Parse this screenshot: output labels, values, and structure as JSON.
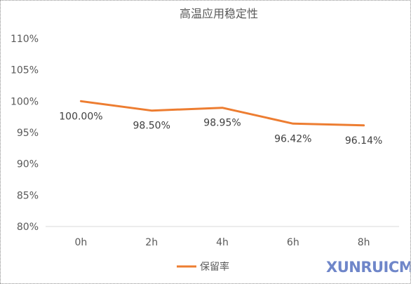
{
  "chart_data": {
    "type": "line",
    "title": "高温应用稳定性",
    "categories": [
      "0h",
      "2h",
      "4h",
      "6h",
      "8h"
    ],
    "series": [
      {
        "name": "保留率",
        "values": [
          100.0,
          98.5,
          98.95,
          96.42,
          96.14
        ],
        "labels": [
          "100.00%",
          "98.50%",
          "98.95%",
          "96.42%",
          "96.14%"
        ],
        "color": "#ed7d31"
      }
    ],
    "ylim": [
      80,
      110
    ],
    "yticks": [
      80,
      85,
      90,
      95,
      100,
      105,
      110
    ],
    "ytick_labels": [
      "80%",
      "85%",
      "90%",
      "95%",
      "100%",
      "105%",
      "110%"
    ],
    "xlabel": "",
    "ylabel": "",
    "grid": false,
    "legend_position": "bottom"
  },
  "watermark": {
    "text": "XUNRUICMS",
    "color": "#6f86c9"
  }
}
